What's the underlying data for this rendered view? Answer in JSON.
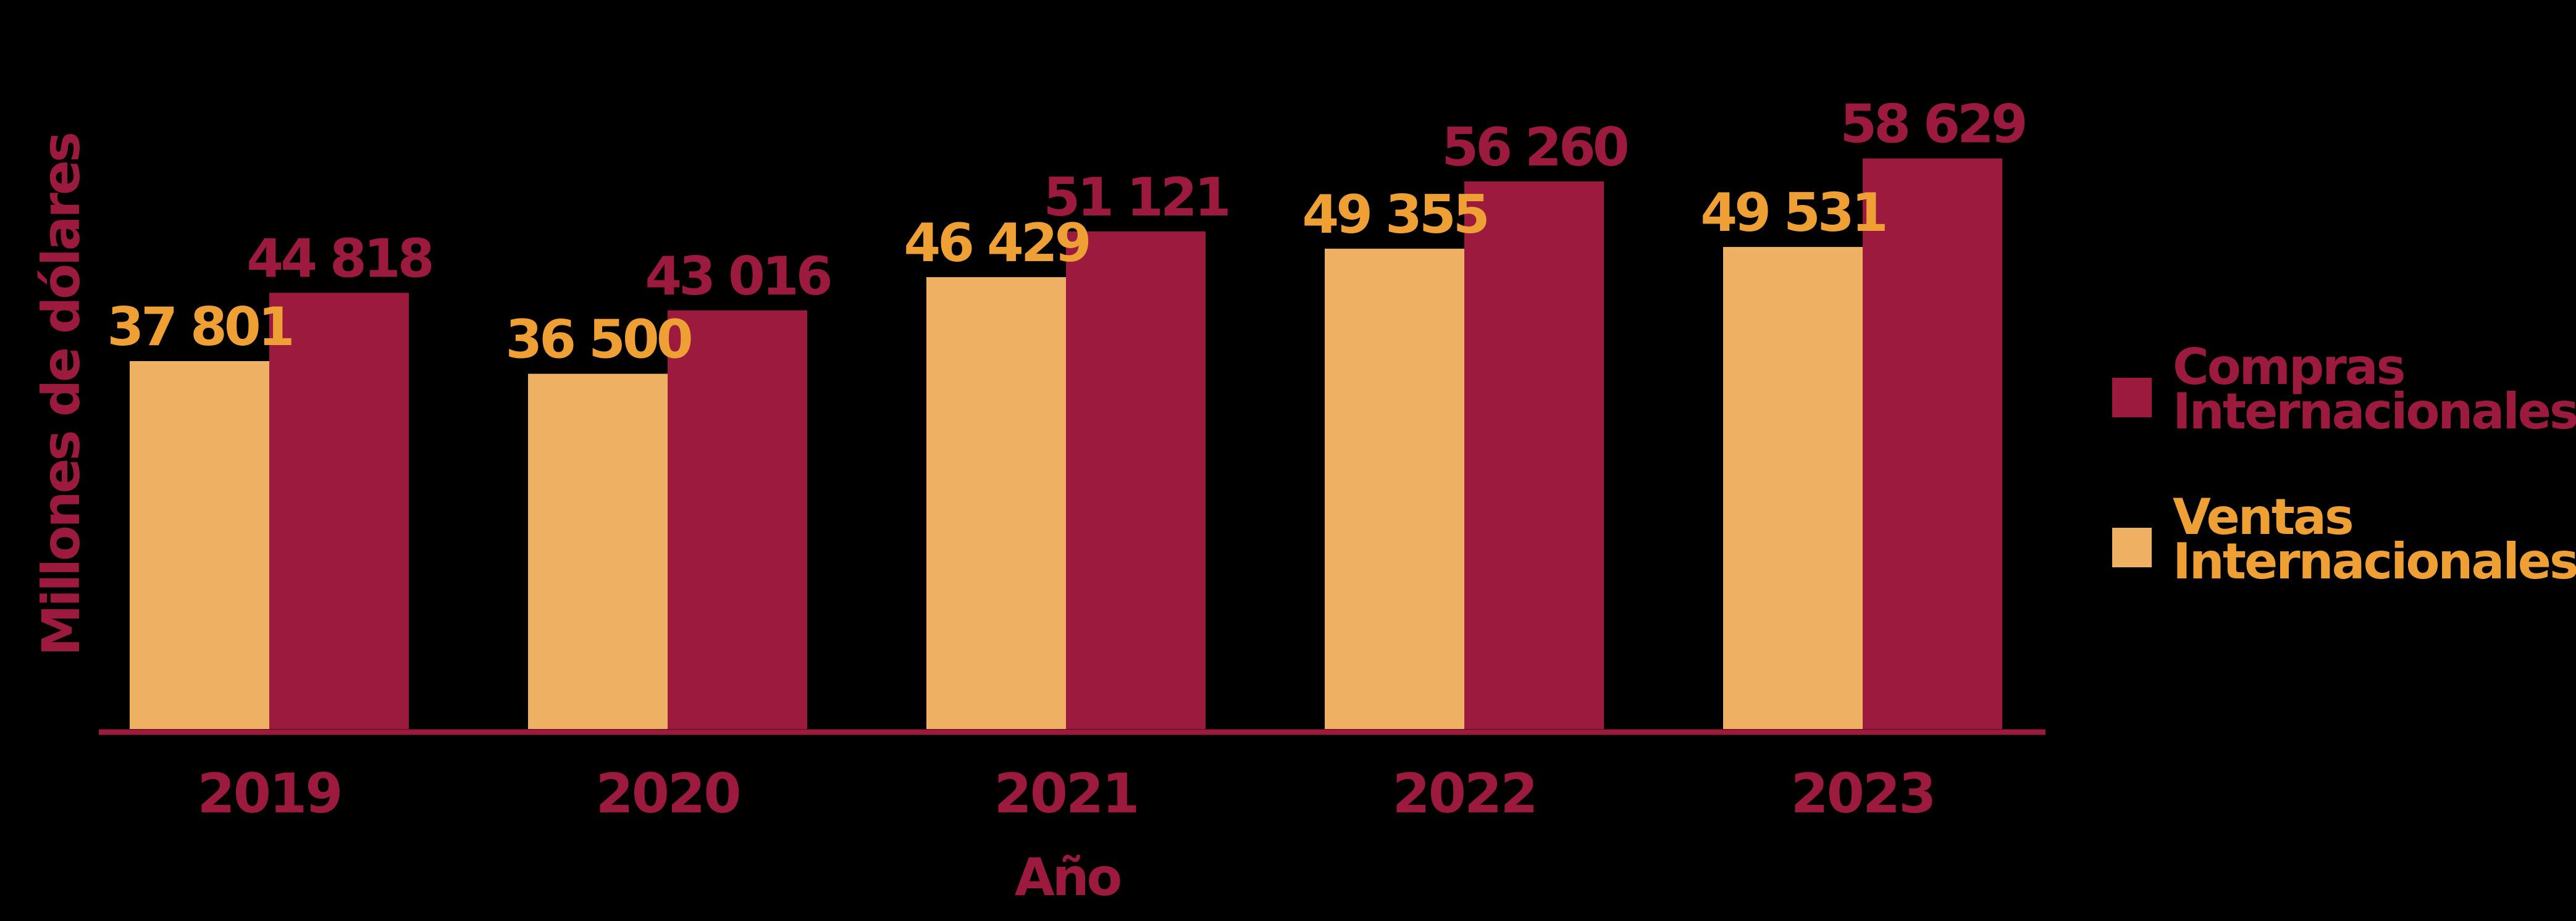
{
  "chart_data": {
    "type": "bar",
    "categories": [
      "2019",
      "2020",
      "2021",
      "2022",
      "2023"
    ],
    "series": [
      {
        "name": "Ventas Internacionales",
        "values": [
          37801,
          36500,
          46429,
          49355,
          49531
        ],
        "labels": [
          "37 801",
          "36 500",
          "46 429",
          "49 355",
          "49 531"
        ],
        "color": "#EEB163",
        "label_color": "#EEA035"
      },
      {
        "name": "Compras Internacionales",
        "values": [
          44818,
          43016,
          51121,
          56260,
          58629
        ],
        "labels": [
          "44 818",
          "43 016",
          "51 121",
          "56 260",
          "58 629"
        ],
        "color": "#9C1A3E",
        "label_color": "#9C1A3E"
      }
    ],
    "xlabel": "Año",
    "ylabel": "Millones de dólares",
    "ylim": [
      0,
      60000
    ],
    "grid": false,
    "legend": {
      "placement": "right",
      "items": [
        {
          "series": 1,
          "lines": [
            "Compras",
            "Internacionales"
          ]
        },
        {
          "series": 0,
          "lines": [
            "Ventas",
            "Internacionales"
          ]
        }
      ]
    },
    "background": "#000000",
    "axis_color": "#9C1A3E"
  }
}
